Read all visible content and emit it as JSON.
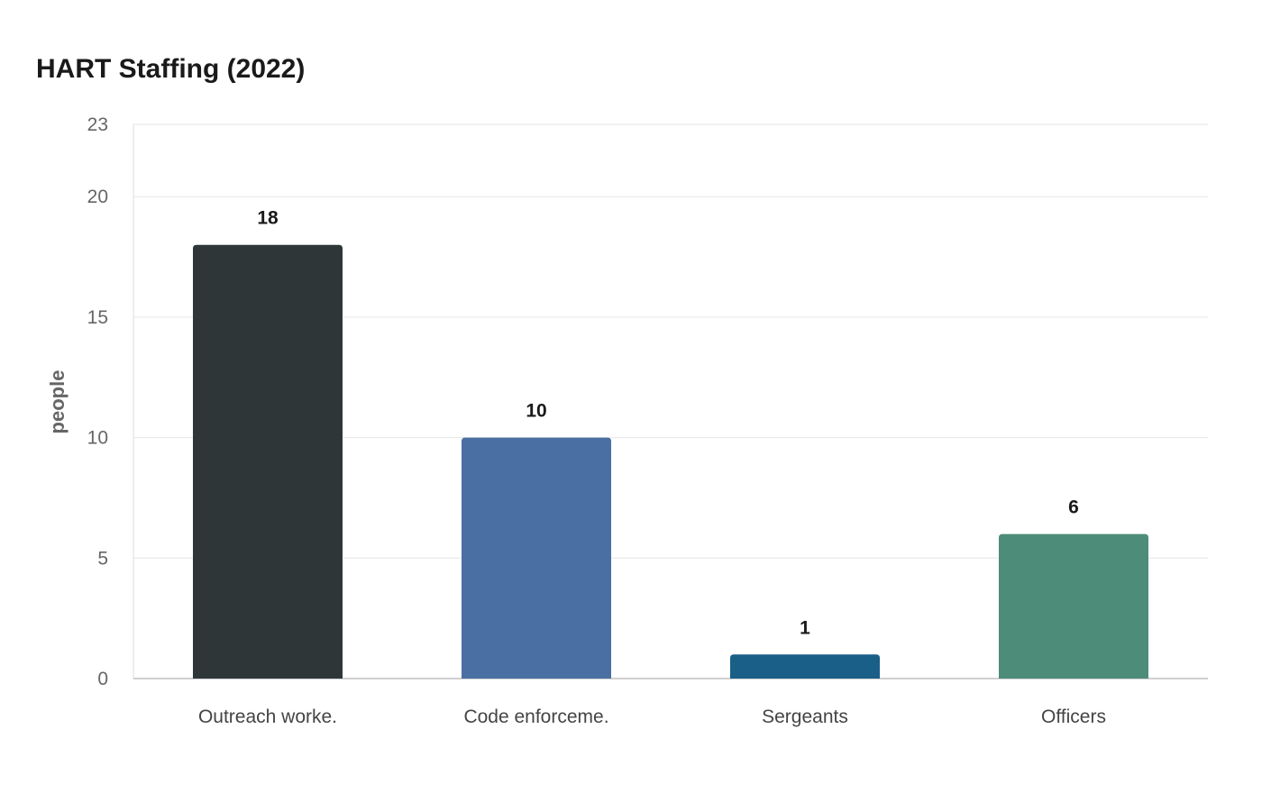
{
  "chart_data": {
    "type": "bar",
    "title": "HART Staffing (2022)",
    "xlabel": "",
    "ylabel": "people",
    "ylim": [
      0,
      23
    ],
    "yticks": [
      0,
      5,
      10,
      15,
      20,
      23
    ],
    "grid": true,
    "categories": [
      "Outreach worke.",
      "Code enforceme.",
      "Sergeants",
      "Officers"
    ],
    "values": [
      18,
      10,
      1,
      6
    ],
    "colors": [
      "#2e3638",
      "#4a6fa3",
      "#1a5f88",
      "#4e8c7a"
    ]
  }
}
